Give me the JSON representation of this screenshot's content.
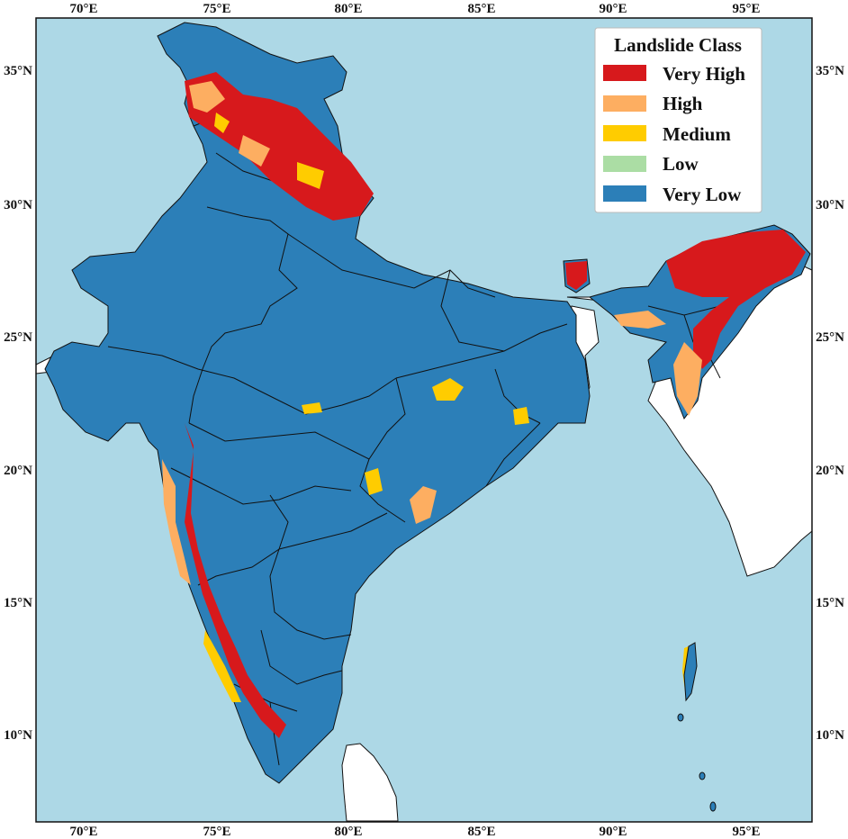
{
  "map": {
    "colors": {
      "sea": "#add8e6",
      "land_outside": "#ffffff",
      "very_low": "#2c7fb8",
      "border": "#111111"
    },
    "longitude_labels": [
      "70°E",
      "75°E",
      "80°E",
      "85°E",
      "90°E",
      "95°E"
    ],
    "latitude_labels": [
      "35°N",
      "30°N",
      "25°N",
      "20°N",
      "15°N",
      "10°N"
    ]
  },
  "legend": {
    "title": "Landslide Class",
    "items": [
      {
        "label": "Very High",
        "color": "#d7191c"
      },
      {
        "label": "High",
        "color": "#fdae61"
      },
      {
        "label": "Medium",
        "color": "#ffcc00"
      },
      {
        "label": "Low",
        "color": "#abdda4"
      },
      {
        "label": "Very Low",
        "color": "#2c7fb8"
      }
    ]
  }
}
